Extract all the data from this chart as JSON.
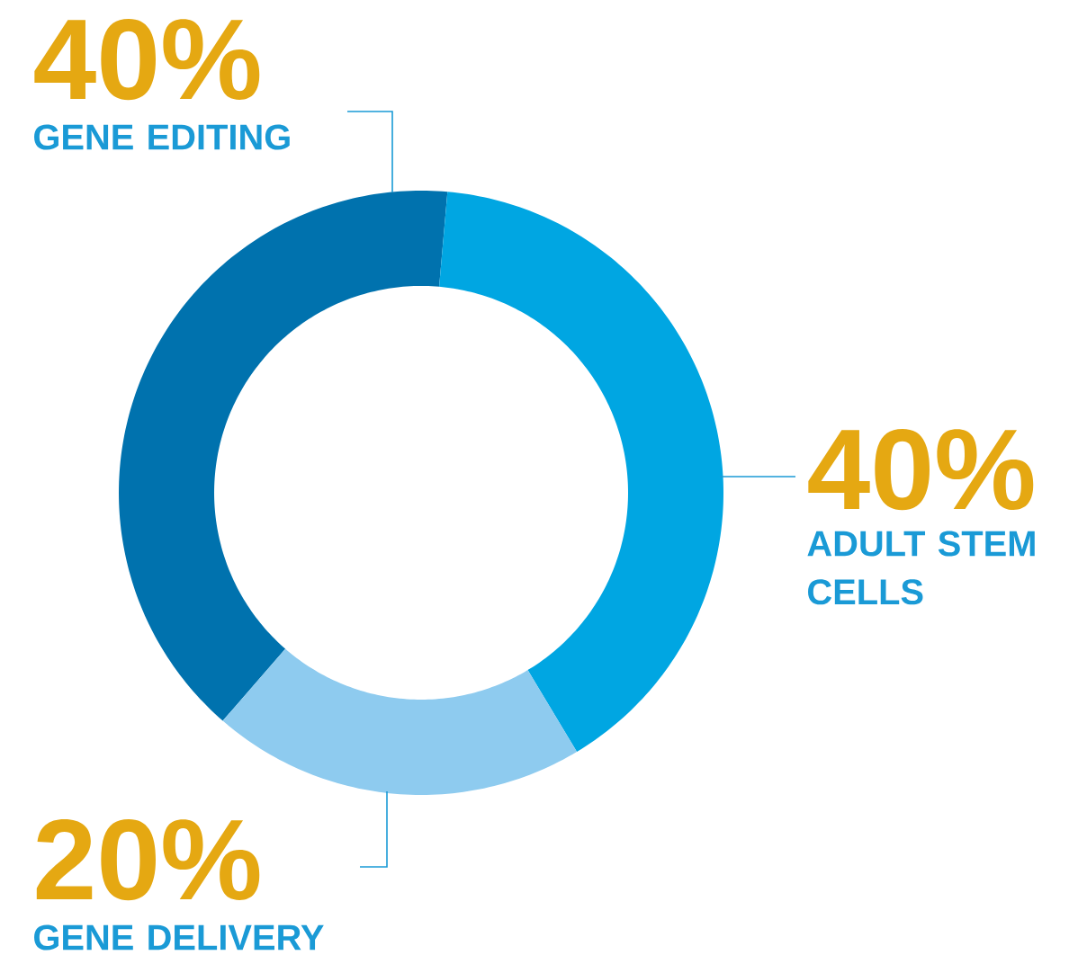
{
  "chart_data": {
    "type": "donut",
    "categories": [
      "GENE EDITING",
      "ADULT STEM CELLS",
      "GENE DELIVERY"
    ],
    "values": [
      40,
      40,
      20
    ],
    "colors": [
      "#0072ae",
      "#00a6e2",
      "#8ecbef"
    ],
    "value_labels": [
      "40%",
      "40%",
      "20%"
    ]
  }
}
